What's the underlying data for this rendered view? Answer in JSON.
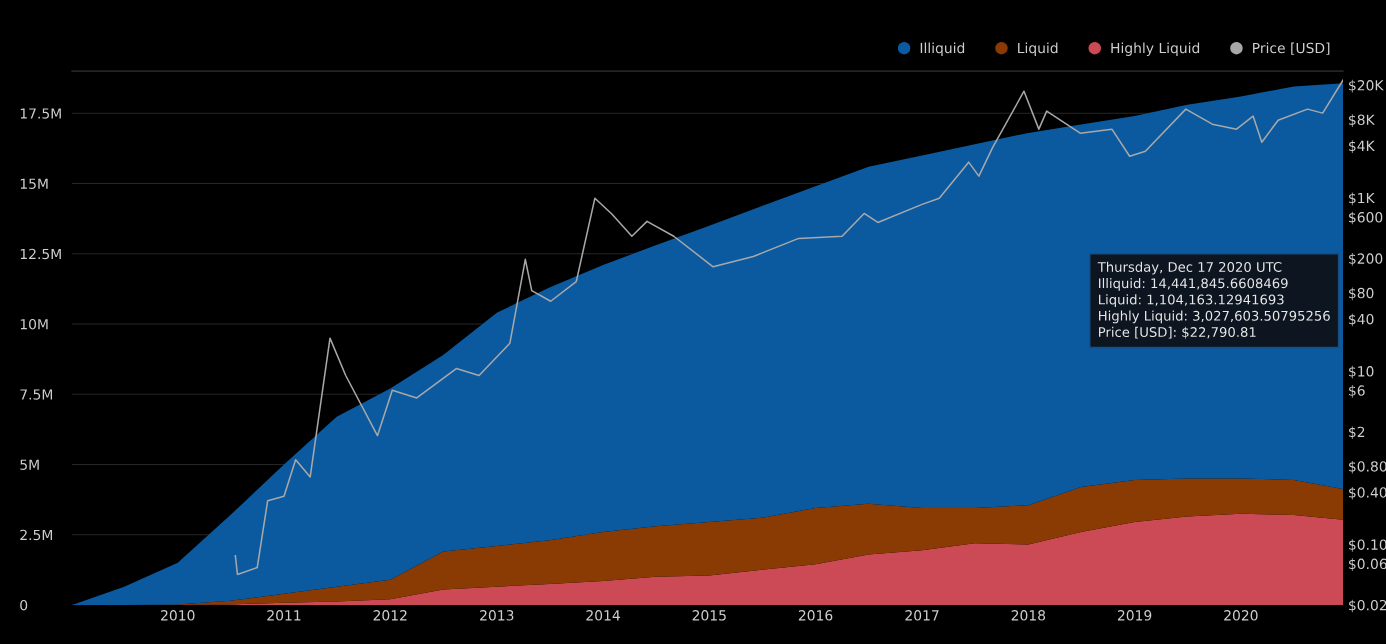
{
  "chart_data": {
    "type": "area",
    "stacked": true,
    "x": [
      "2009-01-03",
      "2009-07-01",
      "2010-01-01",
      "2010-07-01",
      "2011-01-01",
      "2011-07-01",
      "2012-01-01",
      "2012-07-01",
      "2013-01-01",
      "2013-07-01",
      "2014-01-01",
      "2014-07-01",
      "2015-01-01",
      "2015-07-01",
      "2016-01-01",
      "2016-07-01",
      "2017-01-01",
      "2017-07-01",
      "2018-01-01",
      "2018-07-01",
      "2019-01-01",
      "2019-07-01",
      "2020-01-01",
      "2020-07-01",
      "2020-12-17"
    ],
    "series": [
      {
        "name": "Highly Liquid",
        "color": "#cc4a55",
        "values": [
          0,
          0,
          0,
          20000,
          80000,
          120000,
          200000,
          550000,
          650000,
          750000,
          850000,
          1000000,
          1050000,
          1250000,
          1450000,
          1800000,
          1950000,
          2200000,
          2150000,
          2600000,
          2950000,
          3150000,
          3250000,
          3200000,
          3030000
        ]
      },
      {
        "name": "Liquid",
        "color": "#8a3a03",
        "values": [
          0,
          0,
          20000,
          130000,
          320000,
          530000,
          700000,
          1350000,
          1450000,
          1550000,
          1750000,
          1800000,
          1900000,
          1850000,
          2000000,
          1800000,
          1500000,
          1250000,
          1400000,
          1600000,
          1500000,
          1350000,
          1250000,
          1250000,
          1100000
        ]
      },
      {
        "name": "Illiquid",
        "color": "#0b5aa0",
        "values": [
          0,
          650000,
          1480000,
          3050000,
          4600000,
          6050000,
          6800000,
          7000000,
          8300000,
          9000000,
          9500000,
          10000000,
          10550000,
          11100000,
          11450000,
          12000000,
          12550000,
          12950000,
          13250000,
          12900000,
          12950000,
          13300000,
          13600000,
          14000000,
          14440000
        ]
      },
      {
        "name": "Price [USD]",
        "type": "line",
        "axis": "y2",
        "color": "#a8a8a8",
        "x": [
          "2010-07-18",
          "2010-07-25",
          "2010-10-01",
          "2010-11-06",
          "2011-01-01",
          "2011-02-10",
          "2011-04-01",
          "2011-06-08",
          "2011-08-01",
          "2011-11-18",
          "2012-01-08",
          "2012-04-01",
          "2012-08-15",
          "2012-11-01",
          "2013-02-15",
          "2013-04-09",
          "2013-05-01",
          "2013-07-05",
          "2013-10-01",
          "2013-12-04",
          "2014-02-01",
          "2014-04-10",
          "2014-06-01",
          "2014-09-01",
          "2015-01-14",
          "2015-06-01",
          "2015-11-04",
          "2016-04-01",
          "2016-06-16",
          "2016-08-02",
          "2017-01-01",
          "2017-03-01",
          "2017-06-10",
          "2017-07-15",
          "2017-09-01",
          "2017-12-17",
          "2018-02-06",
          "2018-03-05",
          "2018-06-28",
          "2018-10-15",
          "2018-12-15",
          "2019-02-07",
          "2019-06-26",
          "2019-09-25",
          "2019-12-17",
          "2020-02-12",
          "2020-03-13",
          "2020-05-08",
          "2020-08-17",
          "2020-10-08",
          "2020-12-17"
        ],
        "values": [
          0.074,
          0.045,
          0.054,
          0.32,
          0.36,
          0.95,
          0.6,
          24,
          8.9,
          1.8,
          6,
          4.9,
          10.7,
          8.9,
          21,
          195,
          85,
          64,
          108,
          990,
          645,
          360,
          535,
          360,
          160,
          210,
          340,
          360,
          660,
          520,
          840,
          990,
          2580,
          1780,
          3840,
          17000,
          6200,
          10000,
          5570,
          6200,
          3020,
          3450,
          10560,
          7080,
          6200,
          8770,
          4380,
          7870,
          10560,
          9490,
          22790.81
        ]
      }
    ],
    "xlim": [
      "2009-01-03",
      "2020-12-17"
    ],
    "xticks": [
      "2010",
      "2011",
      "2012",
      "2013",
      "2014",
      "2015",
      "2016",
      "2017",
      "2018",
      "2019",
      "2020"
    ],
    "ylim": [
      0,
      19000000
    ],
    "yticks": [
      {
        "value": 0,
        "label": "0"
      },
      {
        "value": 2500000,
        "label": "2.5M"
      },
      {
        "value": 5000000,
        "label": "5M"
      },
      {
        "value": 7500000,
        "label": "7.5M"
      },
      {
        "value": 10000000,
        "label": "10M"
      },
      {
        "value": 12500000,
        "label": "12.5M"
      },
      {
        "value": 15000000,
        "label": "15M"
      },
      {
        "value": 17500000,
        "label": "17.5M"
      }
    ],
    "log": "y2",
    "y2lim": [
      0.02,
      29000
    ],
    "y2ticks": [
      {
        "value": 0.02,
        "label": "$0.02"
      },
      {
        "value": 0.06,
        "label": "$0.06"
      },
      {
        "value": 0.1,
        "label": "$0.10"
      },
      {
        "value": 0.4,
        "label": "$0.40"
      },
      {
        "value": 0.8,
        "label": "$0.80"
      },
      {
        "value": 2,
        "label": "$2"
      },
      {
        "value": 6,
        "label": "$6"
      },
      {
        "value": 10,
        "label": "$10"
      },
      {
        "value": 40,
        "label": "$40"
      },
      {
        "value": 80,
        "label": "$80"
      },
      {
        "value": 200,
        "label": "$200"
      },
      {
        "value": 600,
        "label": "$600"
      },
      {
        "value": 1000,
        "label": "$1K"
      },
      {
        "value": 4000,
        "label": "$4K"
      },
      {
        "value": 8000,
        "label": "$8K"
      },
      {
        "value": 20000,
        "label": "$20K"
      }
    ],
    "grid": "y",
    "legend": "top right",
    "annotations": [
      "Thursday, Dec 17 2020 UTC\nIlliquid: 14,441,845.6608469\nLiquid: 1,104,163.12941693\nHighly Liquid: 3,027,603.50795256\nPrice [USD]: $22,790.81"
    ]
  }
}
